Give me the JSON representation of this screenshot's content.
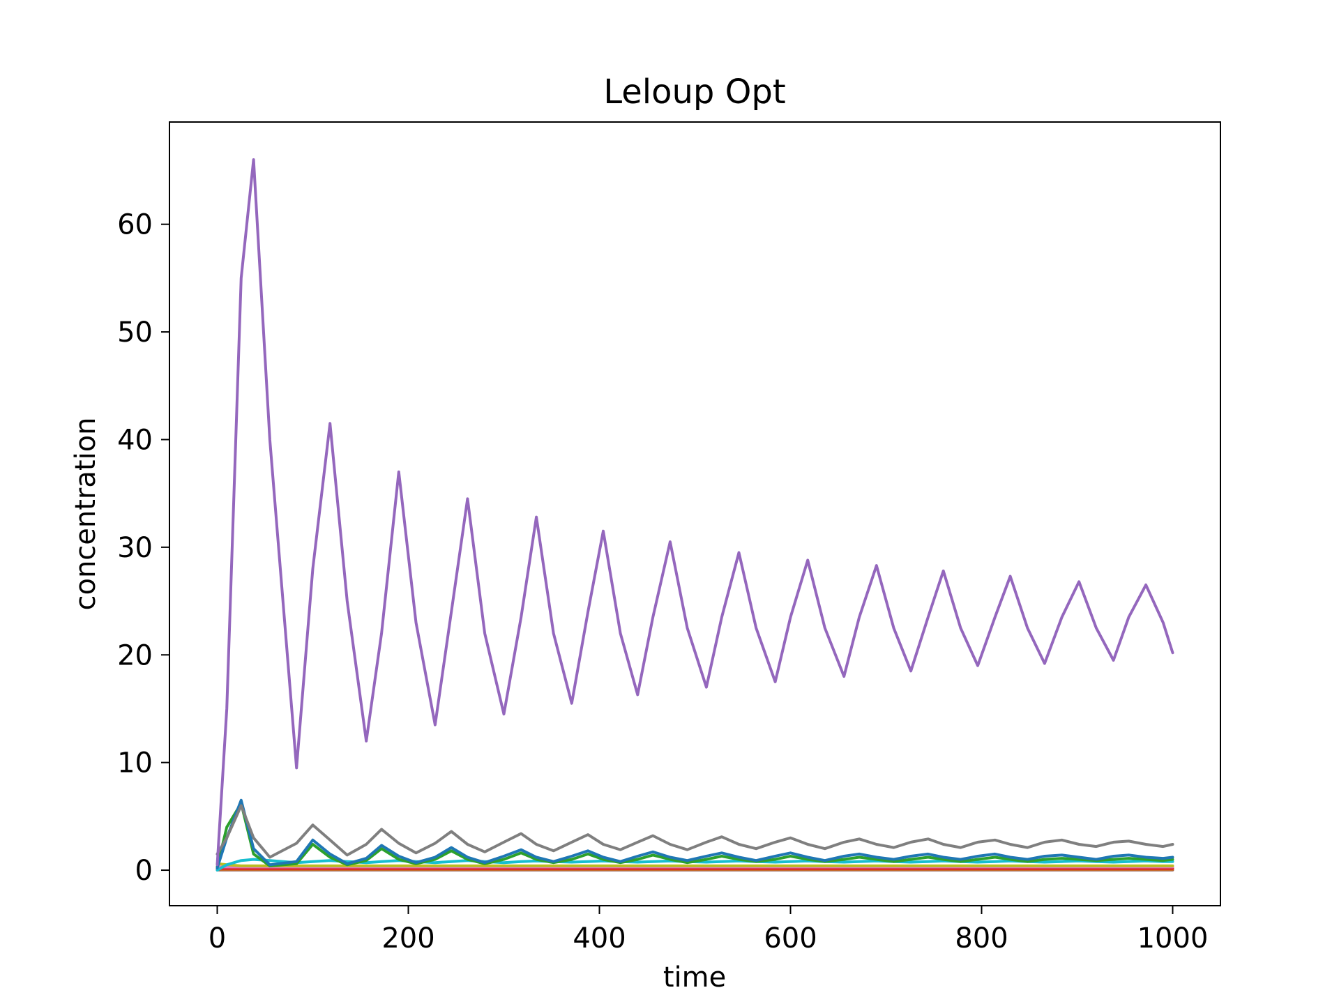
{
  "chart_data": {
    "type": "line",
    "title": "Leloup Opt",
    "xlabel": "time",
    "ylabel": "concentration",
    "xlim": [
      -50,
      1050
    ],
    "ylim": [
      -3.3,
      69.5
    ],
    "xticks": [
      0,
      200,
      400,
      600,
      800,
      1000
    ],
    "yticks": [
      0,
      10,
      20,
      30,
      40,
      50,
      60
    ],
    "grid": false,
    "legend": "none",
    "x": [
      0,
      10,
      25,
      38,
      55,
      83,
      100,
      118,
      136,
      156,
      172,
      190,
      208,
      228,
      245,
      262,
      280,
      300,
      318,
      334,
      352,
      371,
      388,
      404,
      422,
      440,
      456,
      474,
      492,
      512,
      528,
      546,
      564,
      584,
      600,
      618,
      636,
      656,
      672,
      690,
      708,
      726,
      744,
      760,
      778,
      796,
      814,
      830,
      848,
      866,
      884,
      902,
      920,
      938,
      954,
      972,
      990,
      1000
    ],
    "series": [
      {
        "color": "#9467bd",
        "values": [
          0.5,
          15,
          55,
          66,
          40,
          9.5,
          28,
          41.5,
          25,
          12,
          22,
          37,
          23,
          13.5,
          24,
          34.5,
          22,
          14.5,
          23.5,
          32.8,
          22,
          15.5,
          24,
          31.5,
          22,
          16.3,
          23.5,
          30.5,
          22.5,
          17,
          23.5,
          29.5,
          22.5,
          17.5,
          23.5,
          28.8,
          22.5,
          18,
          23.5,
          28.3,
          22.5,
          18.5,
          23.5,
          27.8,
          22.5,
          19,
          23.5,
          27.3,
          22.5,
          19.2,
          23.5,
          26.8,
          22.5,
          19.5,
          23.5,
          26.5,
          23,
          20.2
        ]
      },
      {
        "color": "#7f7f7f",
        "values": [
          1.5,
          3,
          6,
          3,
          1.2,
          2.5,
          4.2,
          2.8,
          1.4,
          2.4,
          3.8,
          2.5,
          1.6,
          2.5,
          3.6,
          2.4,
          1.7,
          2.6,
          3.4,
          2.4,
          1.8,
          2.6,
          3.3,
          2.4,
          1.9,
          2.6,
          3.2,
          2.4,
          1.9,
          2.6,
          3.1,
          2.4,
          2.0,
          2.6,
          3.0,
          2.4,
          2.0,
          2.6,
          2.9,
          2.4,
          2.1,
          2.6,
          2.9,
          2.4,
          2.1,
          2.6,
          2.8,
          2.4,
          2.1,
          2.6,
          2.8,
          2.4,
          2.2,
          2.6,
          2.7,
          2.4,
          2.2,
          2.4
        ]
      },
      {
        "color": "#1f77b4",
        "values": [
          0.2,
          3,
          6.5,
          2,
          0.5,
          0.8,
          2.8,
          1.5,
          0.6,
          1.1,
          2.3,
          1.3,
          0.7,
          1.2,
          2.1,
          1.2,
          0.7,
          1.3,
          1.9,
          1.2,
          0.8,
          1.3,
          1.8,
          1.2,
          0.8,
          1.3,
          1.7,
          1.2,
          0.9,
          1.3,
          1.6,
          1.2,
          0.9,
          1.3,
          1.6,
          1.2,
          0.9,
          1.3,
          1.5,
          1.2,
          1.0,
          1.3,
          1.5,
          1.2,
          1.0,
          1.3,
          1.5,
          1.2,
          1.0,
          1.3,
          1.4,
          1.2,
          1.0,
          1.3,
          1.4,
          1.2,
          1.1,
          1.2
        ]
      },
      {
        "color": "#2ca02c",
        "values": [
          0.3,
          4,
          6.2,
          1.5,
          0.4,
          0.6,
          2.4,
          1.2,
          0.5,
          0.9,
          2.0,
          1.0,
          0.6,
          1.0,
          1.8,
          1.0,
          0.6,
          1.0,
          1.6,
          1.0,
          0.7,
          1.0,
          1.5,
          1.0,
          0.7,
          1.0,
          1.4,
          1.0,
          0.7,
          1.0,
          1.3,
          1.0,
          0.8,
          1.0,
          1.3,
          1.0,
          0.8,
          1.0,
          1.2,
          1.0,
          0.8,
          1.0,
          1.2,
          1.0,
          0.8,
          1.0,
          1.2,
          1.0,
          0.8,
          1.0,
          1.1,
          1.0,
          0.9,
          1.0,
          1.1,
          1.0,
          0.9,
          1.0
        ]
      },
      {
        "color": "#17becf",
        "values": [
          0.0,
          0.5,
          0.9,
          1.0,
          0.9,
          0.7,
          0.8,
          0.9,
          0.8,
          0.7,
          0.8,
          0.9,
          0.8,
          0.7,
          0.8,
          0.9,
          0.8,
          0.7,
          0.8,
          0.85,
          0.8,
          0.75,
          0.8,
          0.85,
          0.8,
          0.75,
          0.8,
          0.85,
          0.8,
          0.75,
          0.8,
          0.85,
          0.8,
          0.75,
          0.8,
          0.85,
          0.8,
          0.75,
          0.8,
          0.85,
          0.8,
          0.75,
          0.8,
          0.85,
          0.8,
          0.75,
          0.8,
          0.85,
          0.8,
          0.75,
          0.8,
          0.85,
          0.8,
          0.75,
          0.8,
          0.85,
          0.8,
          0.8
        ]
      },
      {
        "color": "#bcbd22",
        "values": [
          0.6,
          0.5,
          0.4,
          0.4,
          0.4,
          0.4,
          0.4,
          0.4,
          0.4,
          0.4,
          0.4,
          0.4,
          0.4,
          0.4,
          0.4,
          0.4,
          0.4,
          0.4,
          0.4,
          0.4,
          0.4,
          0.4,
          0.4,
          0.4,
          0.4,
          0.4,
          0.4,
          0.4,
          0.4,
          0.4,
          0.4,
          0.4,
          0.4,
          0.4,
          0.4,
          0.4,
          0.4,
          0.4,
          0.4,
          0.4,
          0.4,
          0.4,
          0.4,
          0.4,
          0.4,
          0.4,
          0.4,
          0.4,
          0.4,
          0.4,
          0.4,
          0.4,
          0.4,
          0.4,
          0.4,
          0.4,
          0.4,
          0.4
        ]
      },
      {
        "color": "#e377c2",
        "values": [
          0.3,
          0.3,
          0.3,
          0.3,
          0.3,
          0.3,
          0.3,
          0.3,
          0.3,
          0.3,
          0.3,
          0.3,
          0.3,
          0.3,
          0.3,
          0.3,
          0.3,
          0.3,
          0.3,
          0.3,
          0.3,
          0.3,
          0.3,
          0.3,
          0.3,
          0.3,
          0.3,
          0.3,
          0.3,
          0.3,
          0.3,
          0.3,
          0.3,
          0.3,
          0.3,
          0.3,
          0.3,
          0.3,
          0.3,
          0.3,
          0.3,
          0.3,
          0.3,
          0.3,
          0.3,
          0.3,
          0.3,
          0.3,
          0.3,
          0.3,
          0.3,
          0.3,
          0.3,
          0.3,
          0.3,
          0.3,
          0.3,
          0.3
        ]
      },
      {
        "color": "#d62728",
        "values": [
          0.15,
          0.15,
          0.15,
          0.15,
          0.15,
          0.15,
          0.15,
          0.15,
          0.15,
          0.15,
          0.15,
          0.15,
          0.15,
          0.15,
          0.15,
          0.15,
          0.15,
          0.15,
          0.15,
          0.15,
          0.15,
          0.15,
          0.15,
          0.15,
          0.15,
          0.15,
          0.15,
          0.15,
          0.15,
          0.15,
          0.15,
          0.15,
          0.15,
          0.15,
          0.15,
          0.15,
          0.15,
          0.15,
          0.15,
          0.15,
          0.15,
          0.15,
          0.15,
          0.15,
          0.15,
          0.15,
          0.15,
          0.15,
          0.15,
          0.15,
          0.15,
          0.15,
          0.15,
          0.15,
          0.15,
          0.15,
          0.15,
          0.15
        ]
      },
      {
        "color": "#ff7f0e",
        "values": [
          0.1,
          0.1,
          0.1,
          0.1,
          0.1,
          0.1,
          0.1,
          0.1,
          0.1,
          0.1,
          0.1,
          0.1,
          0.1,
          0.1,
          0.1,
          0.1,
          0.1,
          0.1,
          0.1,
          0.1,
          0.1,
          0.1,
          0.1,
          0.1,
          0.1,
          0.1,
          0.1,
          0.1,
          0.1,
          0.1,
          0.1,
          0.1,
          0.1,
          0.1,
          0.1,
          0.1,
          0.1,
          0.1,
          0.1,
          0.1,
          0.1,
          0.1,
          0.1,
          0.1,
          0.1,
          0.1,
          0.1,
          0.1,
          0.1,
          0.1,
          0.1,
          0.1,
          0.1,
          0.1,
          0.1,
          0.1,
          0.1,
          0.1
        ]
      },
      {
        "color": "#8c564b",
        "values": [
          0.02,
          0.02,
          0.02,
          0.02,
          0.02,
          0.02,
          0.02,
          0.02,
          0.02,
          0.02,
          0.02,
          0.02,
          0.02,
          0.02,
          0.02,
          0.02,
          0.02,
          0.02,
          0.02,
          0.02,
          0.02,
          0.02,
          0.02,
          0.02,
          0.02,
          0.02,
          0.02,
          0.02,
          0.02,
          0.02,
          0.02,
          0.02,
          0.02,
          0.02,
          0.02,
          0.02,
          0.02,
          0.02,
          0.02,
          0.02,
          0.02,
          0.02,
          0.02,
          0.02,
          0.02,
          0.02,
          0.02,
          0.02,
          0.02,
          0.02,
          0.02,
          0.02,
          0.02,
          0.02,
          0.02,
          0.02,
          0.02,
          0.02
        ]
      }
    ]
  }
}
